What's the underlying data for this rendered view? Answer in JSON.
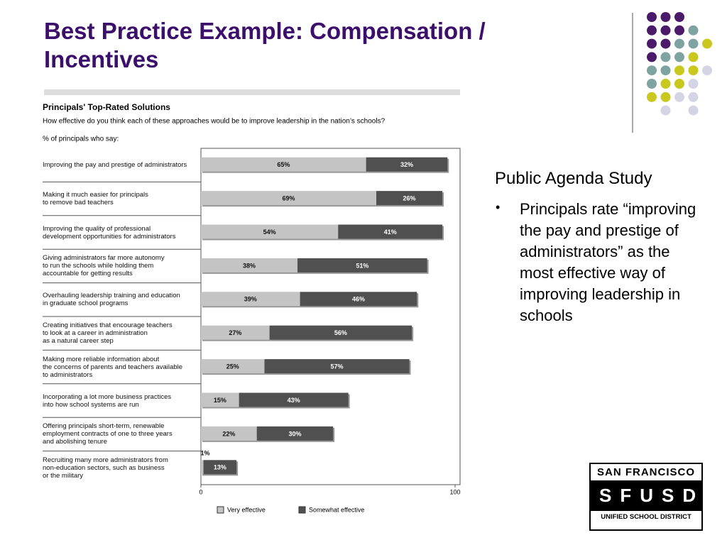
{
  "title": "Best Practice Example: Compensation / Incentives",
  "side": {
    "heading": "Public Agenda Study",
    "bullet": "Principals rate “improving the pay and prestige of administrators” as the most effective way of improving leadership in schools"
  },
  "logo": {
    "top": "SAN FRANCISCO",
    "middle": "SFUSD",
    "bottom": "UNIFIED SCHOOL DISTRICT"
  },
  "chart_data": {
    "type": "stacked_barh",
    "title": "Principals' Top-Rated Solutions",
    "subtitle": "How effective do you think each of these approaches would be to improve leadership in the nation’s schools?",
    "note": "% of principals who say:",
    "categories": [
      "Improving the pay and prestige of administrators",
      "Making it much easier for principals\nto remove bad teachers",
      "Improving the quality of professional\ndevelopment opportunities for administrators",
      "Giving administrators far more autonomy\nto run the schools while holding them\naccountable for getting results",
      "Overhauling leadership training and education\nin graduate school programs",
      "Creating initiatives that encourage teachers\nto look at a career in administration\nas a natural career step",
      "Making more reliable information about\nthe concerns of parents and teachers available\nto administrators",
      "Incorporating a lot more business practices\ninto how school systems are run",
      "Offering principals short-term, renewable\nemployment contracts of one to three years\nand abolishing tenure",
      "Recruiting many more administrators from\nnon-education sectors, such as business\nor the military"
    ],
    "series": [
      {
        "name": "Very effective",
        "color": "#c4c4c4",
        "values": [
          65,
          69,
          54,
          38,
          39,
          27,
          25,
          15,
          22,
          1
        ],
        "value_labels": [
          "65%",
          "69%",
          "54%",
          "38%",
          "39%",
          "27%",
          "25%",
          "15%",
          "22%",
          "1%"
        ]
      },
      {
        "name": "Somewhat effective",
        "color": "#505050",
        "values": [
          32,
          26,
          41,
          51,
          46,
          56,
          57,
          43,
          30,
          13
        ],
        "value_labels": [
          "32%",
          "26%",
          "41%",
          "51%",
          "46%",
          "56%",
          "57%",
          "43%",
          "30%",
          "13%"
        ]
      }
    ],
    "xlim": [
      0,
      100
    ],
    "xticks": [
      0,
      100
    ]
  }
}
